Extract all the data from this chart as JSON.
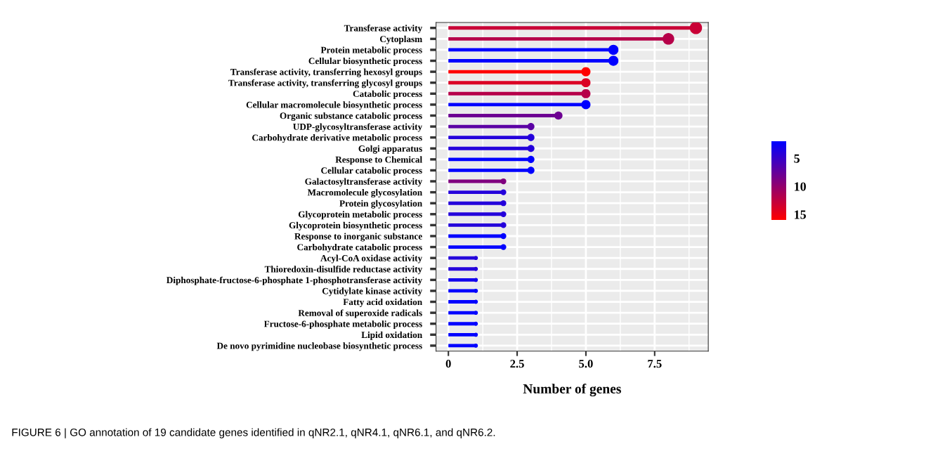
{
  "chart_data": {
    "type": "lollipop",
    "orientation": "horizontal",
    "categories": [
      "Transferase activity",
      "Cytoplasm",
      "Protein metabolic process",
      "Cellular biosynthetic process",
      "Transferase activity, transferring hexosyl groups",
      "Transferase activity, transferring glycosyl groups",
      "Catabolic process",
      "Cellular macromolecule biosynthetic process",
      "Organic substance catabolic process",
      "UDP-glycosyltransferase activity",
      "Carbohydrate derivative metabolic process",
      "Golgi apparatus",
      "Response to Chemical",
      "Cellular catabolic process",
      "Galactosyltransferase activity",
      "Macromolecule glycosylation",
      "Protein glycosylation",
      "Glycoprotein metabolic process",
      "Glycoprotein biosynthetic process",
      "Response to inorganic substance",
      "Carbohydrate catabolic process",
      "Acyl-CoA oxidase activity",
      "Thioredoxin-disulfide reductase activity",
      "Diphosphate-fructose-6-phosphate 1-phosphotransferase activity",
      "Cytidylate kinase activity",
      "Fatty acid oxidation",
      "Removal of superoxide radicals",
      "Fructose-6-phosphate metabolic process",
      "Lipid oxidation",
      "De novo pyrimidine nucleobase biosynthetic process"
    ],
    "values": [
      9,
      8,
      6,
      6,
      5,
      5,
      5,
      5,
      4,
      3,
      3,
      3,
      3,
      3,
      2,
      2,
      2,
      2,
      2,
      2,
      2,
      1,
      1,
      1,
      1,
      1,
      1,
      1,
      1,
      1
    ],
    "sizes": [
      1,
      0.889,
      0.667,
      0.667,
      0.556,
      0.556,
      0.556,
      0.556,
      0.444,
      0.333,
      0.333,
      0.333,
      0.333,
      0.333,
      0.222,
      0.222,
      0.222,
      0.222,
      0.222,
      0.222,
      0.222,
      0.111,
      0.111,
      0.111,
      0.111,
      0.111,
      0.111,
      0.111,
      0.111,
      0.111
    ],
    "cvalues": [
      13,
      12,
      2,
      2,
      16,
      14,
      12,
      2,
      8,
      7,
      4,
      4,
      2,
      2,
      9,
      4,
      4,
      4,
      4,
      2,
      2,
      4,
      4,
      3,
      2,
      2,
      2,
      2,
      2,
      2
    ],
    "xlim": [
      -0.45,
      9.45
    ],
    "xticks": [
      {
        "value": 0,
        "label": "0"
      },
      {
        "value": 2.5,
        "label": "2.5"
      },
      {
        "value": 5,
        "label": "5.0"
      },
      {
        "value": 7.5,
        "label": "7.5"
      }
    ],
    "xlabel": "Number of genes",
    "clim": [
      16,
      2
    ],
    "cticks": [
      5,
      10,
      15
    ],
    "grid": true,
    "marker": "circle",
    "annotations": [
      "FIGURE 6 | GO annotation of 19 candidate genes identified in qNR2.1, qNR4.1, qNR6.1, and qNR6.2."
    ]
  }
}
